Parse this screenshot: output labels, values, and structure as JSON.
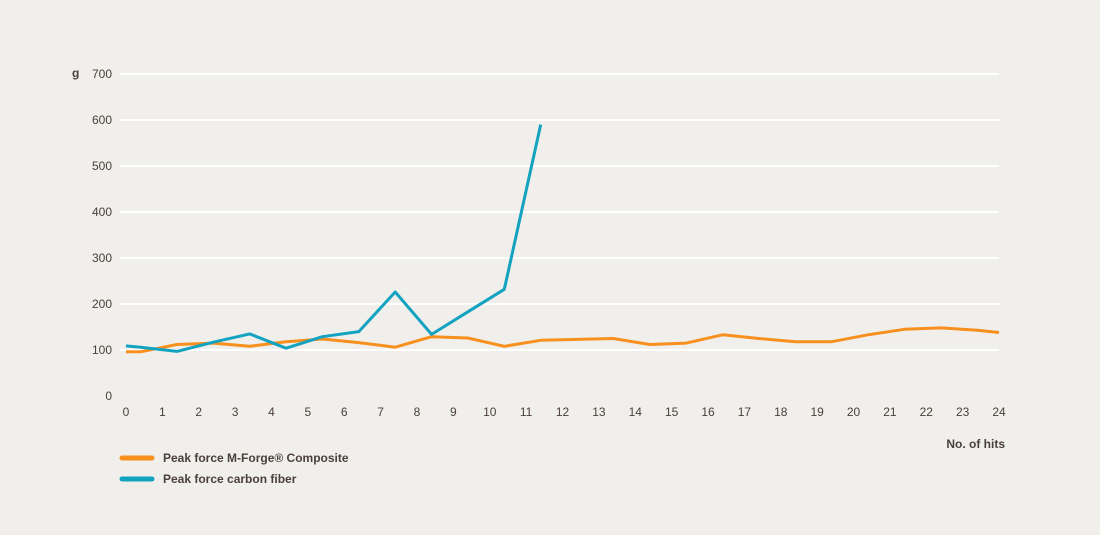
{
  "chart_data": {
    "type": "line",
    "title": "",
    "ylabel": "g",
    "xlabel": "No. of hits",
    "xlim": [
      0,
      24
    ],
    "ylim": [
      0,
      700
    ],
    "x_ticks": [
      0,
      1,
      2,
      3,
      4,
      5,
      6,
      7,
      8,
      9,
      10,
      11,
      12,
      13,
      14,
      15,
      16,
      17,
      18,
      19,
      20,
      21,
      22,
      23,
      24
    ],
    "y_ticks": [
      0,
      100,
      200,
      300,
      400,
      500,
      600,
      700
    ],
    "grid": true,
    "legend_position": "bottom-left",
    "series": [
      {
        "name": "Peak force M-Forge® Composite",
        "color": "#f7901e",
        "points": [
          {
            "x": 0,
            "y": 96
          },
          {
            "x": 0.4,
            "y": 96
          },
          {
            "x": 1.4,
            "y": 112
          },
          {
            "x": 2.4,
            "y": 115
          },
          {
            "x": 3.4,
            "y": 108
          },
          {
            "x": 4.4,
            "y": 118
          },
          {
            "x": 5.4,
            "y": 124
          },
          {
            "x": 6.4,
            "y": 116
          },
          {
            "x": 7.4,
            "y": 106
          },
          {
            "x": 8.4,
            "y": 129
          },
          {
            "x": 9.4,
            "y": 126
          },
          {
            "x": 10.4,
            "y": 108
          },
          {
            "x": 11.4,
            "y": 121
          },
          {
            "x": 12.4,
            "y": 123
          },
          {
            "x": 13.4,
            "y": 125
          },
          {
            "x": 14.4,
            "y": 112
          },
          {
            "x": 15.4,
            "y": 115
          },
          {
            "x": 16.4,
            "y": 133
          },
          {
            "x": 17.4,
            "y": 125
          },
          {
            "x": 18.4,
            "y": 118
          },
          {
            "x": 19.4,
            "y": 118
          },
          {
            "x": 20.4,
            "y": 133
          },
          {
            "x": 21.4,
            "y": 145
          },
          {
            "x": 22.4,
            "y": 148
          },
          {
            "x": 23.4,
            "y": 143
          },
          {
            "x": 24,
            "y": 138
          }
        ]
      },
      {
        "name": "Peak force carbon fiber",
        "color": "#13a3c1",
        "points": [
          {
            "x": 0,
            "y": 109
          },
          {
            "x": 0.4,
            "y": 106
          },
          {
            "x": 1.4,
            "y": 97
          },
          {
            "x": 2.4,
            "y": 117
          },
          {
            "x": 3.4,
            "y": 135
          },
          {
            "x": 4.4,
            "y": 104
          },
          {
            "x": 5.4,
            "y": 129
          },
          {
            "x": 6.4,
            "y": 140
          },
          {
            "x": 7.4,
            "y": 226
          },
          {
            "x": 8.4,
            "y": 134
          },
          {
            "x": 9.4,
            "y": 183
          },
          {
            "x": 10.4,
            "y": 232
          },
          {
            "x": 11.4,
            "y": 590
          }
        ]
      }
    ]
  }
}
